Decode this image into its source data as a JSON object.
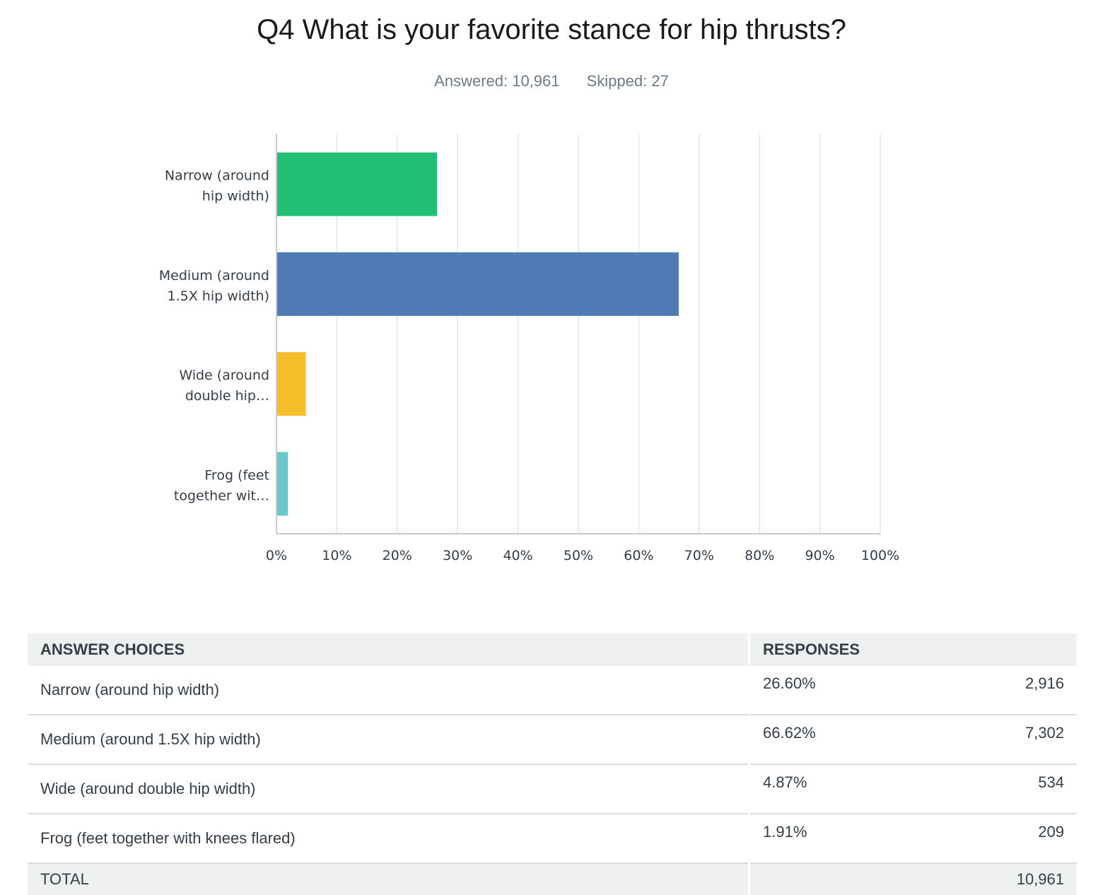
{
  "title": "Q4 What is your favorite stance for hip thrusts?",
  "answered": "Answered: 10,961",
  "skipped": "Skipped: 27",
  "chart_data": {
    "type": "bar",
    "orientation": "horizontal",
    "categories": [
      "Narrow (around hip width)",
      "Medium (around 1.5X hip width)",
      "Wide (around double hip…",
      "Frog (feet together wit…"
    ],
    "category_label_lines": [
      [
        "Narrow (around",
        "hip width)"
      ],
      [
        "Medium (around",
        "1.5X hip width)"
      ],
      [
        "Wide (around",
        "double hip…"
      ],
      [
        "Frog (feet",
        "together wit…"
      ]
    ],
    "values": [
      26.6,
      66.62,
      4.87,
      1.91
    ],
    "colors": [
      "#20bf73",
      "#517bb4",
      "#f6bd2b",
      "#6cc8c8"
    ],
    "xlim": [
      0,
      100
    ],
    "xticks": [
      "0%",
      "10%",
      "20%",
      "30%",
      "40%",
      "50%",
      "60%",
      "70%",
      "80%",
      "90%",
      "100%"
    ],
    "grid": true,
    "title": "",
    "xlabel": "",
    "ylabel": ""
  },
  "table": {
    "header_choices": "ANSWER CHOICES",
    "header_responses": "RESPONSES",
    "rows": [
      {
        "choice": "Narrow (around hip width)",
        "pct": "26.60%",
        "count": "2,916"
      },
      {
        "choice": "Medium (around 1.5X hip width)",
        "pct": "66.62%",
        "count": "7,302"
      },
      {
        "choice": "Wide (around double hip width)",
        "pct": "4.87%",
        "count": "534"
      },
      {
        "choice": "Frog (feet together with knees flared)",
        "pct": "1.91%",
        "count": "209"
      }
    ],
    "total_label": "TOTAL",
    "total_count": "10,961"
  }
}
